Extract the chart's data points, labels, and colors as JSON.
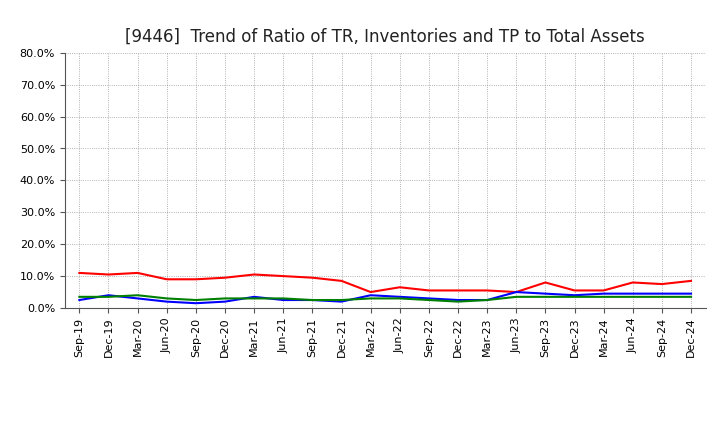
{
  "title": "[9446]  Trend of Ratio of TR, Inventories and TP to Total Assets",
  "x_labels": [
    "Sep-19",
    "Dec-19",
    "Mar-20",
    "Jun-20",
    "Sep-20",
    "Dec-20",
    "Mar-21",
    "Jun-21",
    "Sep-21",
    "Dec-21",
    "Mar-22",
    "Jun-22",
    "Sep-22",
    "Dec-22",
    "Mar-23",
    "Jun-23",
    "Sep-23",
    "Dec-23",
    "Mar-24",
    "Jun-24",
    "Sep-24",
    "Dec-24"
  ],
  "trade_receivables": [
    11.0,
    10.5,
    11.0,
    9.0,
    9.0,
    9.5,
    10.5,
    10.0,
    9.5,
    8.5,
    5.0,
    6.5,
    5.5,
    5.5,
    5.5,
    5.0,
    8.0,
    5.5,
    5.5,
    8.0,
    7.5,
    8.5
  ],
  "inventories": [
    2.5,
    4.0,
    3.0,
    2.0,
    1.5,
    2.0,
    3.5,
    2.5,
    2.5,
    2.0,
    4.0,
    3.5,
    3.0,
    2.5,
    2.5,
    5.0,
    4.5,
    4.0,
    4.5,
    4.5,
    4.5,
    4.5
  ],
  "trade_payables": [
    3.5,
    3.5,
    4.0,
    3.0,
    2.5,
    3.0,
    3.0,
    3.0,
    2.5,
    2.5,
    3.0,
    3.0,
    2.5,
    2.0,
    2.5,
    3.5,
    3.5,
    3.5,
    3.5,
    3.5,
    3.5,
    3.5
  ],
  "tr_color": "#FF0000",
  "inv_color": "#0000FF",
  "tp_color": "#008000",
  "ylim": [
    0,
    80
  ],
  "yticks": [
    0,
    10,
    20,
    30,
    40,
    50,
    60,
    70,
    80
  ],
  "background_color": "#FFFFFF",
  "grid_color": "#999999",
  "title_fontsize": 12,
  "tick_fontsize": 8,
  "legend_fontsize": 9
}
